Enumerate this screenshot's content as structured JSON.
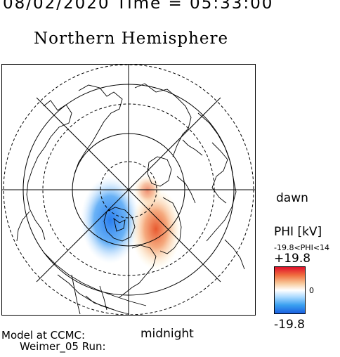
{
  "header": {
    "datetime": "08/02/2020 Time = 05:33:00"
  },
  "map": {
    "title": "Northern Hemisphere",
    "labels": {
      "dawn": "dawn",
      "midnight": "midnight"
    }
  },
  "colorbar": {
    "title": "PHI [kV]",
    "range_text": "-19.8<PHI<14",
    "max_label": "+19.8",
    "mid_label": "0",
    "min_label": "-19.8",
    "colors": {
      "max": "#e0102a",
      "mid": "#ffffff",
      "min": "#1a60e0"
    }
  },
  "footer": {
    "line1": "Model at CCMC:",
    "line2": "Weimer_05 Run:"
  }
}
